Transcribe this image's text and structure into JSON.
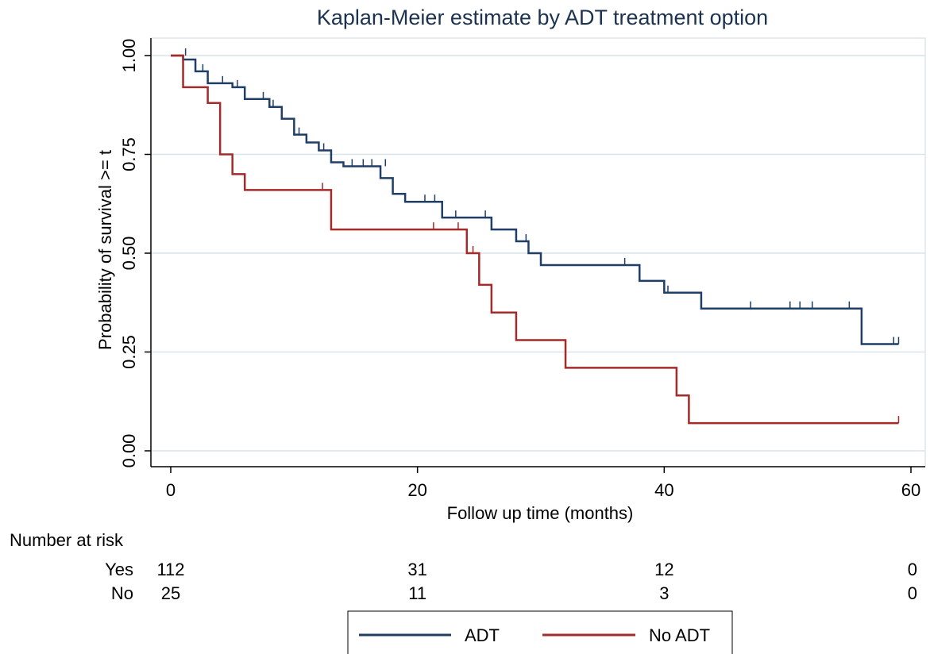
{
  "chart_data": {
    "type": "line",
    "subtype": "kaplan-meier step",
    "title": "Kaplan-Meier estimate by ADT treatment option",
    "xlabel": "Follow up time (months)",
    "ylabel": "Probability of survival >= t",
    "xlim": [
      0,
      60
    ],
    "ylim": [
      0,
      1
    ],
    "xticks": [
      "0",
      "20",
      "40",
      "60"
    ],
    "yticks": [
      "0.00",
      "0.25",
      "0.50",
      "0.75",
      "1.00"
    ],
    "ytick_values": [
      0,
      0.25,
      0.5,
      0.75,
      1.0
    ],
    "xtick_values": [
      0,
      20,
      40,
      60
    ],
    "grid": "horizontal",
    "series": [
      {
        "name": "ADT",
        "color": "#1f3f66",
        "x": [
          0,
          1,
          2,
          3,
          5,
          6,
          8,
          9,
          10,
          11,
          12,
          13,
          14,
          17,
          18,
          19,
          20,
          22,
          24,
          26,
          28,
          29,
          30,
          38,
          40,
          43,
          56,
          59
        ],
        "y": [
          1.0,
          0.99,
          0.96,
          0.93,
          0.92,
          0.89,
          0.87,
          0.84,
          0.8,
          0.78,
          0.76,
          0.73,
          0.72,
          0.69,
          0.65,
          0.63,
          0.63,
          0.59,
          0.59,
          0.56,
          0.53,
          0.5,
          0.47,
          0.43,
          0.4,
          0.36,
          0.27,
          0.27
        ],
        "censored": [
          [
            1.2,
            1.0
          ],
          [
            2.6,
            0.96
          ],
          [
            4.2,
            0.93
          ],
          [
            5.4,
            0.92
          ],
          [
            7.5,
            0.89
          ],
          [
            8.3,
            0.87
          ],
          [
            10.4,
            0.8
          ],
          [
            12.4,
            0.76
          ],
          [
            14.7,
            0.72
          ],
          [
            15.6,
            0.72
          ],
          [
            16.3,
            0.72
          ],
          [
            17.4,
            0.72
          ],
          [
            20.6,
            0.63
          ],
          [
            21.4,
            0.63
          ],
          [
            23.1,
            0.59
          ],
          [
            25.5,
            0.59
          ],
          [
            28.8,
            0.53
          ],
          [
            36.8,
            0.47
          ],
          [
            40.3,
            0.4
          ],
          [
            47.0,
            0.36
          ],
          [
            50.2,
            0.36
          ],
          [
            51.0,
            0.36
          ],
          [
            52.0,
            0.36
          ],
          [
            55.0,
            0.36
          ],
          [
            58.6,
            0.27
          ],
          [
            59.0,
            0.27
          ]
        ]
      },
      {
        "name": "No ADT",
        "color": "#a52a2a",
        "x": [
          0,
          1,
          3,
          4,
          5,
          6,
          13,
          24,
          25,
          26,
          28,
          32,
          41,
          42,
          59
        ],
        "y": [
          1.0,
          0.92,
          0.88,
          0.75,
          0.7,
          0.66,
          0.56,
          0.5,
          0.42,
          0.35,
          0.28,
          0.21,
          0.14,
          0.07,
          0.07
        ],
        "censored": [
          [
            1.0,
            0.96
          ],
          [
            12.3,
            0.66
          ],
          [
            21.3,
            0.56
          ],
          [
            23.3,
            0.56
          ],
          [
            24.5,
            0.5
          ],
          [
            59.0,
            0.07
          ]
        ]
      }
    ],
    "risk_table": {
      "heading": "Number at risk",
      "time_points": [
        0,
        20,
        40,
        60
      ],
      "rows": [
        {
          "label": "Yes",
          "values": [
            "112",
            "31",
            "12",
            "0"
          ]
        },
        {
          "label": "No",
          "values": [
            "25",
            "11",
            "3",
            "0"
          ]
        }
      ]
    },
    "legend": {
      "placement": "bottom",
      "entries": [
        "ADT",
        "No ADT"
      ]
    }
  }
}
